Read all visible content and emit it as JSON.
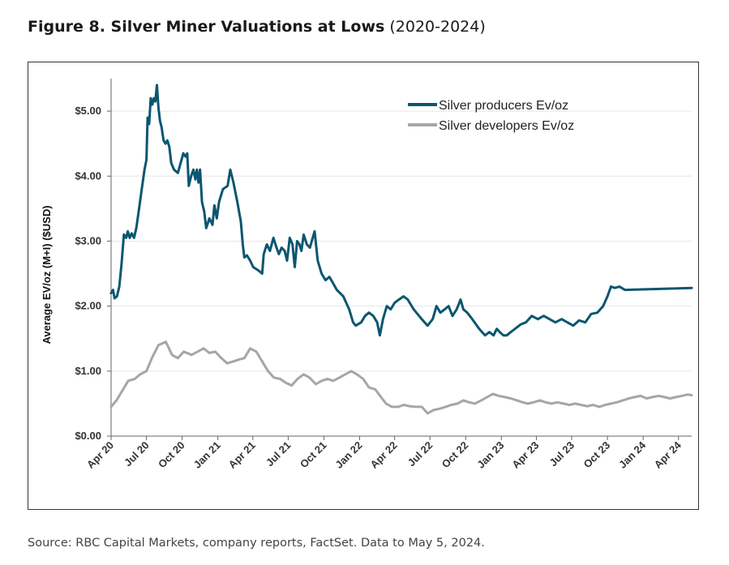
{
  "figure": {
    "title_bold": "Figure 8. Silver Miner Valuations at Lows",
    "title_rest": " (2020-2024)",
    "source": "Source: RBC Capital Markets, company reports, FactSet. Data to May 5, 2024."
  },
  "chart_data": {
    "type": "line",
    "title": "Figure 8. Silver Miner Valuations at Lows (2020-2024)",
    "xlabel": "",
    "ylabel": "Average EV/oz (M+I) ($USD)",
    "ylim": [
      0,
      5.5
    ],
    "yticks": [
      0,
      1,
      2,
      3,
      4,
      5
    ],
    "ytick_labels": [
      "$0.00",
      "$1.00",
      "$2.00",
      "$3.00",
      "$4.00",
      "$5.00"
    ],
    "xlim": [
      "2020-04-01",
      "2024-05-05"
    ],
    "xticks": [
      "2020-04-01",
      "2020-07-01",
      "2020-10-01",
      "2021-01-01",
      "2021-04-01",
      "2021-07-01",
      "2021-10-01",
      "2022-01-01",
      "2022-04-01",
      "2022-07-01",
      "2022-10-01",
      "2023-01-01",
      "2023-04-01",
      "2023-07-01",
      "2023-10-01",
      "2024-01-01",
      "2024-04-01"
    ],
    "xtick_labels": [
      "Apr 20",
      "Jul 20",
      "Oct 20",
      "Jan 21",
      "Apr 21",
      "Jul 21",
      "Oct 21",
      "Jan 22",
      "Apr 22",
      "Jul 22",
      "Oct 22",
      "Jan 23",
      "Apr 23",
      "Jul 23",
      "Oct 23",
      "Jan 24",
      "Apr 24"
    ],
    "grid": "horizontal",
    "legend_position": "top-right",
    "series": [
      {
        "name": "Silver producers Ev/oz",
        "color": "#0b5670",
        "points": [
          [
            "2020-04-01",
            2.2
          ],
          [
            "2020-04-06",
            2.25
          ],
          [
            "2020-04-10",
            2.12
          ],
          [
            "2020-04-16",
            2.15
          ],
          [
            "2020-04-22",
            2.3
          ],
          [
            "2020-04-28",
            2.65
          ],
          [
            "2020-05-04",
            3.1
          ],
          [
            "2020-05-10",
            3.05
          ],
          [
            "2020-05-14",
            3.15
          ],
          [
            "2020-05-19",
            3.05
          ],
          [
            "2020-05-24",
            3.12
          ],
          [
            "2020-05-30",
            3.05
          ],
          [
            "2020-06-05",
            3.2
          ],
          [
            "2020-06-12",
            3.5
          ],
          [
            "2020-06-19",
            3.8
          ],
          [
            "2020-06-26",
            4.1
          ],
          [
            "2020-07-01",
            4.25
          ],
          [
            "2020-07-04",
            4.9
          ],
          [
            "2020-07-08",
            4.8
          ],
          [
            "2020-07-12",
            5.2
          ],
          [
            "2020-07-16",
            5.1
          ],
          [
            "2020-07-20",
            5.2
          ],
          [
            "2020-07-24",
            5.15
          ],
          [
            "2020-07-28",
            5.4
          ],
          [
            "2020-08-01",
            5.05
          ],
          [
            "2020-08-05",
            4.85
          ],
          [
            "2020-08-09",
            4.75
          ],
          [
            "2020-08-14",
            4.55
          ],
          [
            "2020-08-19",
            4.5
          ],
          [
            "2020-08-24",
            4.55
          ],
          [
            "2020-08-29",
            4.45
          ],
          [
            "2020-09-03",
            4.2
          ],
          [
            "2020-09-10",
            4.1
          ],
          [
            "2020-09-20",
            4.05
          ],
          [
            "2020-09-27",
            4.2
          ],
          [
            "2020-10-04",
            4.35
          ],
          [
            "2020-10-10",
            4.3
          ],
          [
            "2020-10-14",
            4.35
          ],
          [
            "2020-10-18",
            3.85
          ],
          [
            "2020-10-24",
            4.0
          ],
          [
            "2020-10-30",
            4.1
          ],
          [
            "2020-11-04",
            3.95
          ],
          [
            "2020-11-08",
            4.1
          ],
          [
            "2020-11-12",
            3.9
          ],
          [
            "2020-11-16",
            4.1
          ],
          [
            "2020-11-21",
            3.6
          ],
          [
            "2020-11-27",
            3.45
          ],
          [
            "2020-12-02",
            3.2
          ],
          [
            "2020-12-10",
            3.35
          ],
          [
            "2020-12-18",
            3.25
          ],
          [
            "2020-12-23",
            3.55
          ],
          [
            "2020-12-29",
            3.35
          ],
          [
            "2021-01-04",
            3.6
          ],
          [
            "2021-01-14",
            3.8
          ],
          [
            "2021-01-26",
            3.85
          ],
          [
            "2021-02-02",
            4.1
          ],
          [
            "2021-02-10",
            3.9
          ],
          [
            "2021-02-20",
            3.6
          ],
          [
            "2021-03-01",
            3.3
          ],
          [
            "2021-03-06",
            2.95
          ],
          [
            "2021-03-10",
            2.75
          ],
          [
            "2021-03-17",
            2.78
          ],
          [
            "2021-03-25",
            2.7
          ],
          [
            "2021-04-02",
            2.6
          ],
          [
            "2021-04-15",
            2.55
          ],
          [
            "2021-04-25",
            2.5
          ],
          [
            "2021-04-29",
            2.8
          ],
          [
            "2021-05-07",
            2.95
          ],
          [
            "2021-05-15",
            2.85
          ],
          [
            "2021-05-24",
            3.05
          ],
          [
            "2021-06-01",
            2.9
          ],
          [
            "2021-06-07",
            2.8
          ],
          [
            "2021-06-14",
            2.9
          ],
          [
            "2021-06-22",
            2.85
          ],
          [
            "2021-06-28",
            2.7
          ],
          [
            "2021-07-05",
            3.05
          ],
          [
            "2021-07-12",
            2.95
          ],
          [
            "2021-07-18",
            2.6
          ],
          [
            "2021-07-24",
            3.0
          ],
          [
            "2021-07-30",
            2.95
          ],
          [
            "2021-08-04",
            2.85
          ],
          [
            "2021-08-10",
            3.1
          ],
          [
            "2021-08-18",
            2.95
          ],
          [
            "2021-08-26",
            2.9
          ],
          [
            "2021-09-02",
            3.05
          ],
          [
            "2021-09-07",
            3.15
          ],
          [
            "2021-09-15",
            2.7
          ],
          [
            "2021-09-25",
            2.5
          ],
          [
            "2021-10-05",
            2.4
          ],
          [
            "2021-10-15",
            2.45
          ],
          [
            "2021-10-25",
            2.35
          ],
          [
            "2021-11-03",
            2.25
          ],
          [
            "2021-11-20",
            2.15
          ],
          [
            "2021-12-05",
            1.95
          ],
          [
            "2021-12-15",
            1.75
          ],
          [
            "2021-12-22",
            1.7
          ],
          [
            "2022-01-05",
            1.75
          ],
          [
            "2022-01-15",
            1.85
          ],
          [
            "2022-01-25",
            1.9
          ],
          [
            "2022-02-05",
            1.85
          ],
          [
            "2022-02-15",
            1.75
          ],
          [
            "2022-02-22",
            1.55
          ],
          [
            "2022-03-02",
            1.8
          ],
          [
            "2022-03-12",
            2.0
          ],
          [
            "2022-03-22",
            1.95
          ],
          [
            "2022-04-01",
            2.05
          ],
          [
            "2022-04-12",
            2.1
          ],
          [
            "2022-04-24",
            2.15
          ],
          [
            "2022-05-05",
            2.1
          ],
          [
            "2022-05-20",
            1.95
          ],
          [
            "2022-06-10",
            1.8
          ],
          [
            "2022-06-25",
            1.7
          ],
          [
            "2022-07-08",
            1.8
          ],
          [
            "2022-07-18",
            2.0
          ],
          [
            "2022-07-28",
            1.9
          ],
          [
            "2022-08-08",
            1.95
          ],
          [
            "2022-08-18",
            2.0
          ],
          [
            "2022-08-28",
            1.85
          ],
          [
            "2022-09-08",
            1.95
          ],
          [
            "2022-09-18",
            2.1
          ],
          [
            "2022-09-25",
            1.95
          ],
          [
            "2022-10-05",
            1.9
          ],
          [
            "2022-10-18",
            1.8
          ],
          [
            "2022-11-05",
            1.65
          ],
          [
            "2022-11-20",
            1.55
          ],
          [
            "2022-12-01",
            1.6
          ],
          [
            "2022-12-12",
            1.55
          ],
          [
            "2022-12-20",
            1.65
          ],
          [
            "2022-12-28",
            1.6
          ],
          [
            "2023-01-06",
            1.55
          ],
          [
            "2023-01-15",
            1.55
          ],
          [
            "2023-01-25",
            1.6
          ],
          [
            "2023-02-05",
            1.65
          ],
          [
            "2023-02-20",
            1.72
          ],
          [
            "2023-03-05",
            1.75
          ],
          [
            "2023-03-20",
            1.85
          ],
          [
            "2023-04-05",
            1.8
          ],
          [
            "2023-04-20",
            1.85
          ],
          [
            "2023-05-05",
            1.8
          ],
          [
            "2023-05-20",
            1.75
          ],
          [
            "2023-06-05",
            1.8
          ],
          [
            "2023-06-20",
            1.75
          ],
          [
            "2023-07-05",
            1.7
          ],
          [
            "2023-07-20",
            1.78
          ],
          [
            "2023-08-05",
            1.75
          ],
          [
            "2023-08-20",
            1.88
          ],
          [
            "2023-09-05",
            1.9
          ],
          [
            "2023-09-20",
            2.0
          ],
          [
            "2023-10-01",
            2.15
          ],
          [
            "2023-10-10",
            2.3
          ],
          [
            "2023-10-20",
            2.28
          ],
          [
            "2023-11-01",
            2.3
          ],
          [
            "2023-11-15",
            2.25
          ],
          [
            "2024-05-05",
            2.28
          ]
        ]
      },
      {
        "name": "Silver developers Ev/oz",
        "color": "#a6a6a6",
        "points": [
          [
            "2020-04-01",
            0.45
          ],
          [
            "2020-04-15",
            0.55
          ],
          [
            "2020-04-30",
            0.7
          ],
          [
            "2020-05-15",
            0.85
          ],
          [
            "2020-06-01",
            0.88
          ],
          [
            "2020-06-15",
            0.95
          ],
          [
            "2020-07-01",
            1.0
          ],
          [
            "2020-07-15",
            1.2
          ],
          [
            "2020-08-01",
            1.4
          ],
          [
            "2020-08-20",
            1.45
          ],
          [
            "2020-09-05",
            1.25
          ],
          [
            "2020-09-20",
            1.2
          ],
          [
            "2020-10-05",
            1.3
          ],
          [
            "2020-10-25",
            1.25
          ],
          [
            "2020-11-10",
            1.3
          ],
          [
            "2020-11-25",
            1.35
          ],
          [
            "2020-12-10",
            1.28
          ],
          [
            "2020-12-25",
            1.3
          ],
          [
            "2021-01-10",
            1.2
          ],
          [
            "2021-01-25",
            1.12
          ],
          [
            "2021-02-10",
            1.15
          ],
          [
            "2021-02-25",
            1.18
          ],
          [
            "2021-03-10",
            1.2
          ],
          [
            "2021-03-25",
            1.35
          ],
          [
            "2021-04-10",
            1.3
          ],
          [
            "2021-04-25",
            1.15
          ],
          [
            "2021-05-10",
            1.0
          ],
          [
            "2021-05-25",
            0.9
          ],
          [
            "2021-06-10",
            0.88
          ],
          [
            "2021-06-25",
            0.82
          ],
          [
            "2021-07-10",
            0.78
          ],
          [
            "2021-07-25",
            0.88
          ],
          [
            "2021-08-10",
            0.95
          ],
          [
            "2021-08-25",
            0.9
          ],
          [
            "2021-09-10",
            0.8
          ],
          [
            "2021-09-25",
            0.85
          ],
          [
            "2021-10-10",
            0.88
          ],
          [
            "2021-10-25",
            0.85
          ],
          [
            "2021-11-10",
            0.9
          ],
          [
            "2021-11-25",
            0.95
          ],
          [
            "2021-12-10",
            1.0
          ],
          [
            "2021-12-25",
            0.95
          ],
          [
            "2022-01-10",
            0.88
          ],
          [
            "2022-01-25",
            0.75
          ],
          [
            "2022-02-10",
            0.72
          ],
          [
            "2022-02-25",
            0.6
          ],
          [
            "2022-03-10",
            0.5
          ],
          [
            "2022-03-25",
            0.45
          ],
          [
            "2022-04-10",
            0.45
          ],
          [
            "2022-04-25",
            0.48
          ],
          [
            "2022-05-10",
            0.46
          ],
          [
            "2022-05-25",
            0.45
          ],
          [
            "2022-06-10",
            0.45
          ],
          [
            "2022-06-25",
            0.35
          ],
          [
            "2022-07-10",
            0.4
          ],
          [
            "2022-07-25",
            0.42
          ],
          [
            "2022-08-10",
            0.45
          ],
          [
            "2022-08-25",
            0.48
          ],
          [
            "2022-09-10",
            0.5
          ],
          [
            "2022-09-25",
            0.55
          ],
          [
            "2022-10-10",
            0.52
          ],
          [
            "2022-10-25",
            0.5
          ],
          [
            "2022-11-10",
            0.55
          ],
          [
            "2022-11-25",
            0.6
          ],
          [
            "2022-12-10",
            0.65
          ],
          [
            "2022-12-25",
            0.62
          ],
          [
            "2023-01-10",
            0.6
          ],
          [
            "2023-01-25",
            0.58
          ],
          [
            "2023-02-10",
            0.55
          ],
          [
            "2023-02-25",
            0.52
          ],
          [
            "2023-03-10",
            0.5
          ],
          [
            "2023-03-25",
            0.52
          ],
          [
            "2023-04-10",
            0.55
          ],
          [
            "2023-04-25",
            0.52
          ],
          [
            "2023-05-10",
            0.5
          ],
          [
            "2023-05-25",
            0.52
          ],
          [
            "2023-06-10",
            0.5
          ],
          [
            "2023-06-25",
            0.48
          ],
          [
            "2023-07-10",
            0.5
          ],
          [
            "2023-07-25",
            0.48
          ],
          [
            "2023-08-10",
            0.46
          ],
          [
            "2023-08-25",
            0.48
          ],
          [
            "2023-09-10",
            0.45
          ],
          [
            "2023-09-25",
            0.48
          ],
          [
            "2023-10-10",
            0.5
          ],
          [
            "2023-10-25",
            0.52
          ],
          [
            "2023-11-10",
            0.55
          ],
          [
            "2023-11-25",
            0.58
          ],
          [
            "2023-12-10",
            0.6
          ],
          [
            "2023-12-25",
            0.62
          ],
          [
            "2024-01-10",
            0.58
          ],
          [
            "2024-01-25",
            0.6
          ],
          [
            "2024-02-10",
            0.62
          ],
          [
            "2024-02-25",
            0.6
          ],
          [
            "2024-03-10",
            0.58
          ],
          [
            "2024-03-25",
            0.6
          ],
          [
            "2024-04-10",
            0.62
          ],
          [
            "2024-04-25",
            0.64
          ],
          [
            "2024-05-05",
            0.63
          ]
        ]
      }
    ]
  }
}
